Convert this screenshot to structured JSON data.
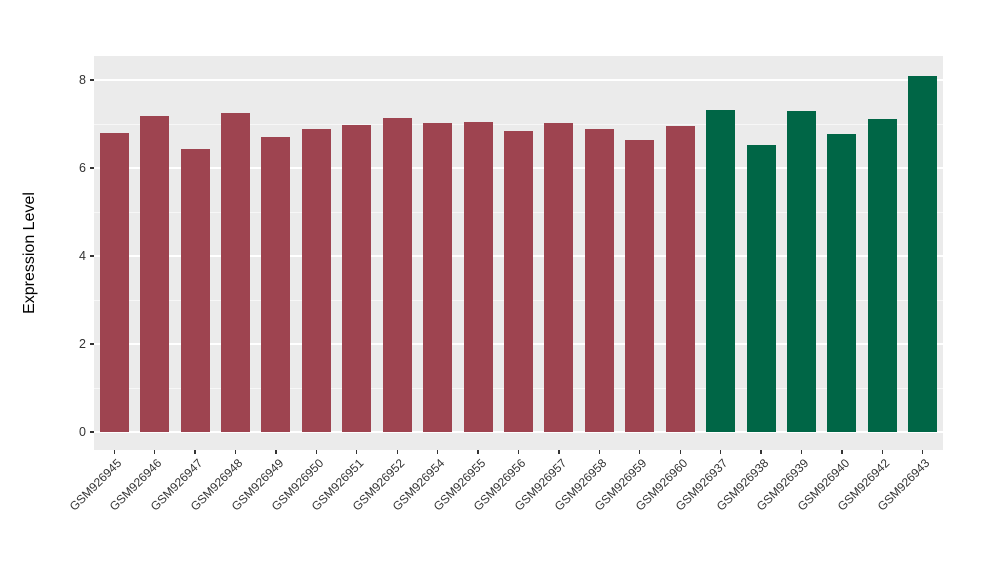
{
  "chart_data": {
    "type": "bar",
    "title": "",
    "xlabel": "",
    "ylabel": "Expression Level",
    "ylim": [
      0,
      8.55
    ],
    "yticks": [
      0,
      2,
      4,
      6,
      8
    ],
    "yticks_minor": [
      1,
      3,
      5,
      7
    ],
    "grid": true,
    "legend": "none",
    "panel_bg": "#EBEBEB",
    "grid_color": "#FFFFFF",
    "axis_text_color": "#333333",
    "palette": {
      "group1": "#9E4450",
      "group2": "#006646"
    },
    "categories": [
      "GSM926945",
      "GSM926946",
      "GSM926947",
      "GSM926948",
      "GSM926949",
      "GSM926950",
      "GSM926951",
      "GSM926952",
      "GSM926954",
      "GSM926955",
      "GSM926956",
      "GSM926957",
      "GSM926958",
      "GSM926959",
      "GSM926960",
      "GSM926937",
      "GSM926938",
      "GSM926939",
      "GSM926940",
      "GSM926942",
      "GSM926943"
    ],
    "values": [
      6.8,
      7.18,
      6.43,
      7.25,
      6.71,
      6.88,
      6.98,
      7.13,
      7.03,
      7.05,
      6.84,
      7.02,
      6.88,
      6.64,
      6.95,
      7.32,
      6.52,
      7.3,
      6.78,
      7.11,
      8.1
    ],
    "bar_groups": [
      "group1",
      "group1",
      "group1",
      "group1",
      "group1",
      "group1",
      "group1",
      "group1",
      "group1",
      "group1",
      "group1",
      "group1",
      "group1",
      "group1",
      "group1",
      "group2",
      "group2",
      "group2",
      "group2",
      "group2",
      "group2"
    ]
  }
}
